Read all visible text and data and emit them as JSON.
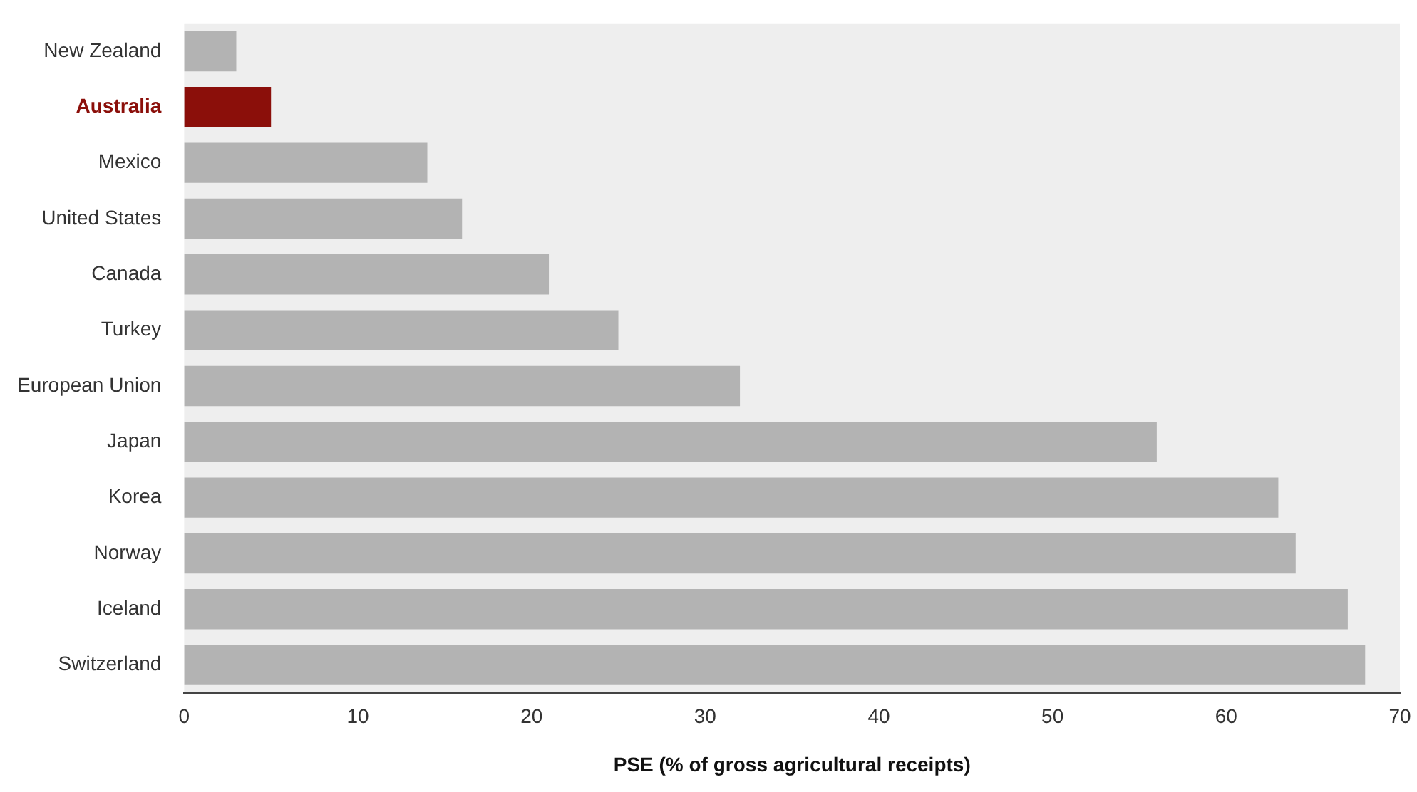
{
  "chart_data": {
    "type": "bar",
    "orientation": "horizontal",
    "xlabel": "PSE (% of gross agricultural receipts)",
    "categories": [
      "New Zealand",
      "Australia",
      "Mexico",
      "United States",
      "Canada",
      "Turkey",
      "European Union",
      "Japan",
      "Korea",
      "Norway",
      "Iceland",
      "Switzerland"
    ],
    "values": [
      3,
      5,
      14,
      16,
      21,
      25,
      32,
      56,
      63,
      64,
      67,
      68
    ],
    "colors": [
      "#b3b3b3",
      "#8b0f0a",
      "#b3b3b3",
      "#b3b3b3",
      "#b3b3b3",
      "#b3b3b3",
      "#b3b3b3",
      "#b3b3b3",
      "#b3b3b3",
      "#b3b3b3",
      "#b3b3b3",
      "#b3b3b3"
    ],
    "xlim": [
      0,
      70
    ],
    "xticks": [
      0,
      10,
      20,
      30,
      40,
      50,
      60,
      70
    ],
    "grid": false,
    "legend": false
  }
}
